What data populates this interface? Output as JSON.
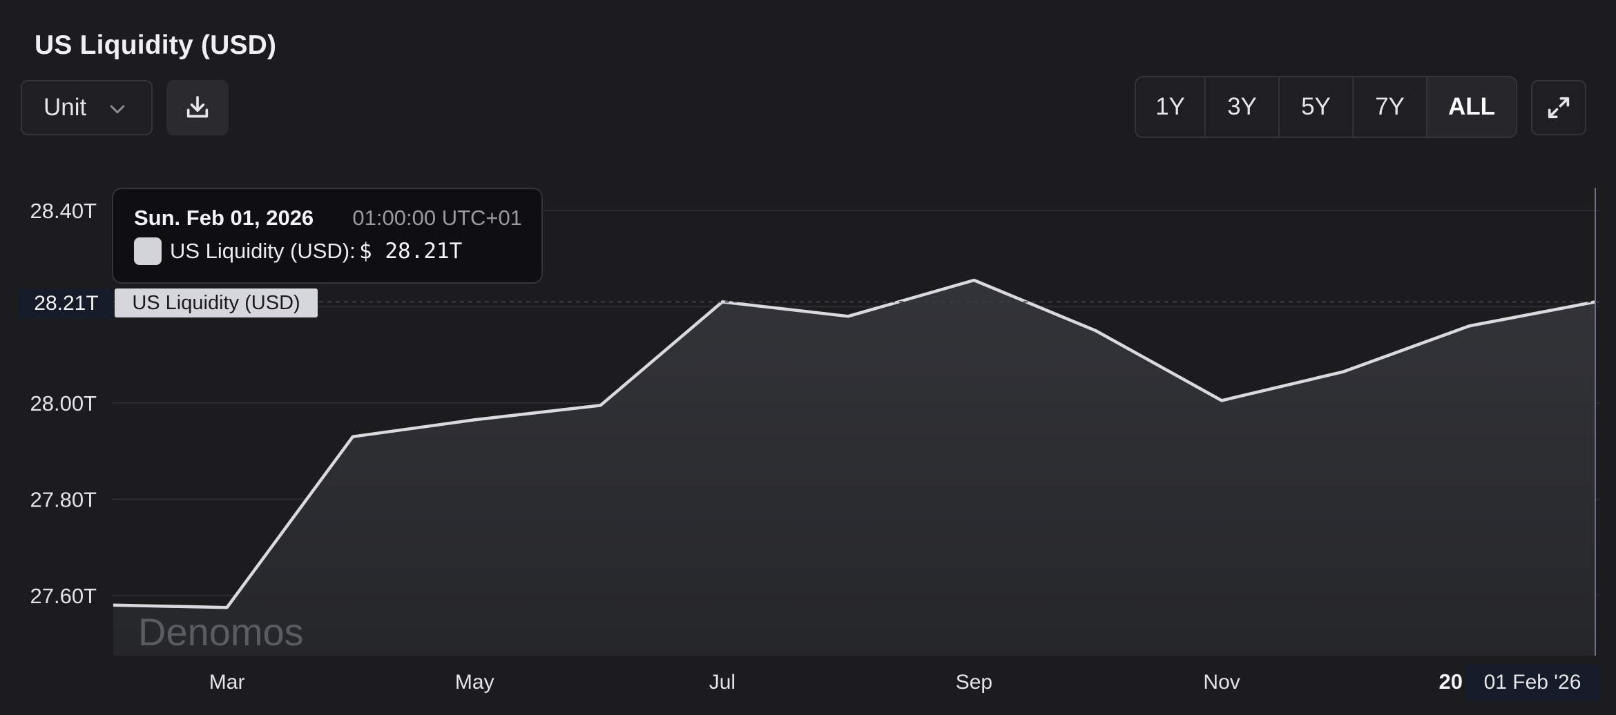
{
  "header": {
    "title": "US Liquidity (USD)",
    "unit_select_label": "Unit",
    "download_icon": "download-icon",
    "chevron_icon": "chevron-down-icon",
    "expand_icon": "expand-icon"
  },
  "range_buttons": [
    {
      "label": "1Y",
      "active": false
    },
    {
      "label": "3Y",
      "active": false
    },
    {
      "label": "5Y",
      "active": false
    },
    {
      "label": "7Y",
      "active": false
    },
    {
      "label": "ALL",
      "active": true
    }
  ],
  "tooltip": {
    "date": "Sun. Feb 01, 2026",
    "time": "01:00:00 UTC+01",
    "series_label": "US Liquidity (USD):",
    "value": "$ 28.21T"
  },
  "crosshair": {
    "price_label": "28.21T",
    "series_tag": "US Liquidity (USD)",
    "date_label": "01 Feb '26",
    "year_label": "20"
  },
  "watermark": "Denomos",
  "colors": {
    "background": "#1c1c1f",
    "line": "#d9dadf",
    "grid": "#2c2d32",
    "crosshair_label_bg": "#161b29"
  },
  "chart_data": {
    "type": "area",
    "title": "US Liquidity (USD)",
    "xlabel": "",
    "ylabel": "",
    "x": [
      "2025-02-01",
      "2025-03-01",
      "2025-04-01",
      "2025-05-01",
      "2025-06-01",
      "2025-07-01",
      "2025-08-01",
      "2025-09-01",
      "2025-10-01",
      "2025-11-01",
      "2025-12-01",
      "2026-01-01",
      "2026-02-01"
    ],
    "series": [
      {
        "name": "US Liquidity (USD)",
        "values": [
          27.58,
          27.575,
          27.93,
          27.965,
          27.995,
          28.21,
          28.18,
          28.255,
          28.15,
          28.005,
          28.065,
          28.16,
          28.21
        ]
      }
    ],
    "x_tick_labels": [
      "Mar",
      "May",
      "Jul",
      "Sep",
      "Nov"
    ],
    "x_tick_dates": [
      "2025-03-01",
      "2025-05-01",
      "2025-07-01",
      "2025-09-01",
      "2025-11-01"
    ],
    "y_ticks": [
      "27.60T",
      "27.80T",
      "28.00T",
      "28.40T"
    ],
    "y_tick_values": [
      27.6,
      27.8,
      28.0,
      28.4
    ],
    "ylim": [
      27.475,
      28.45
    ],
    "grid": true,
    "legend": "none"
  }
}
